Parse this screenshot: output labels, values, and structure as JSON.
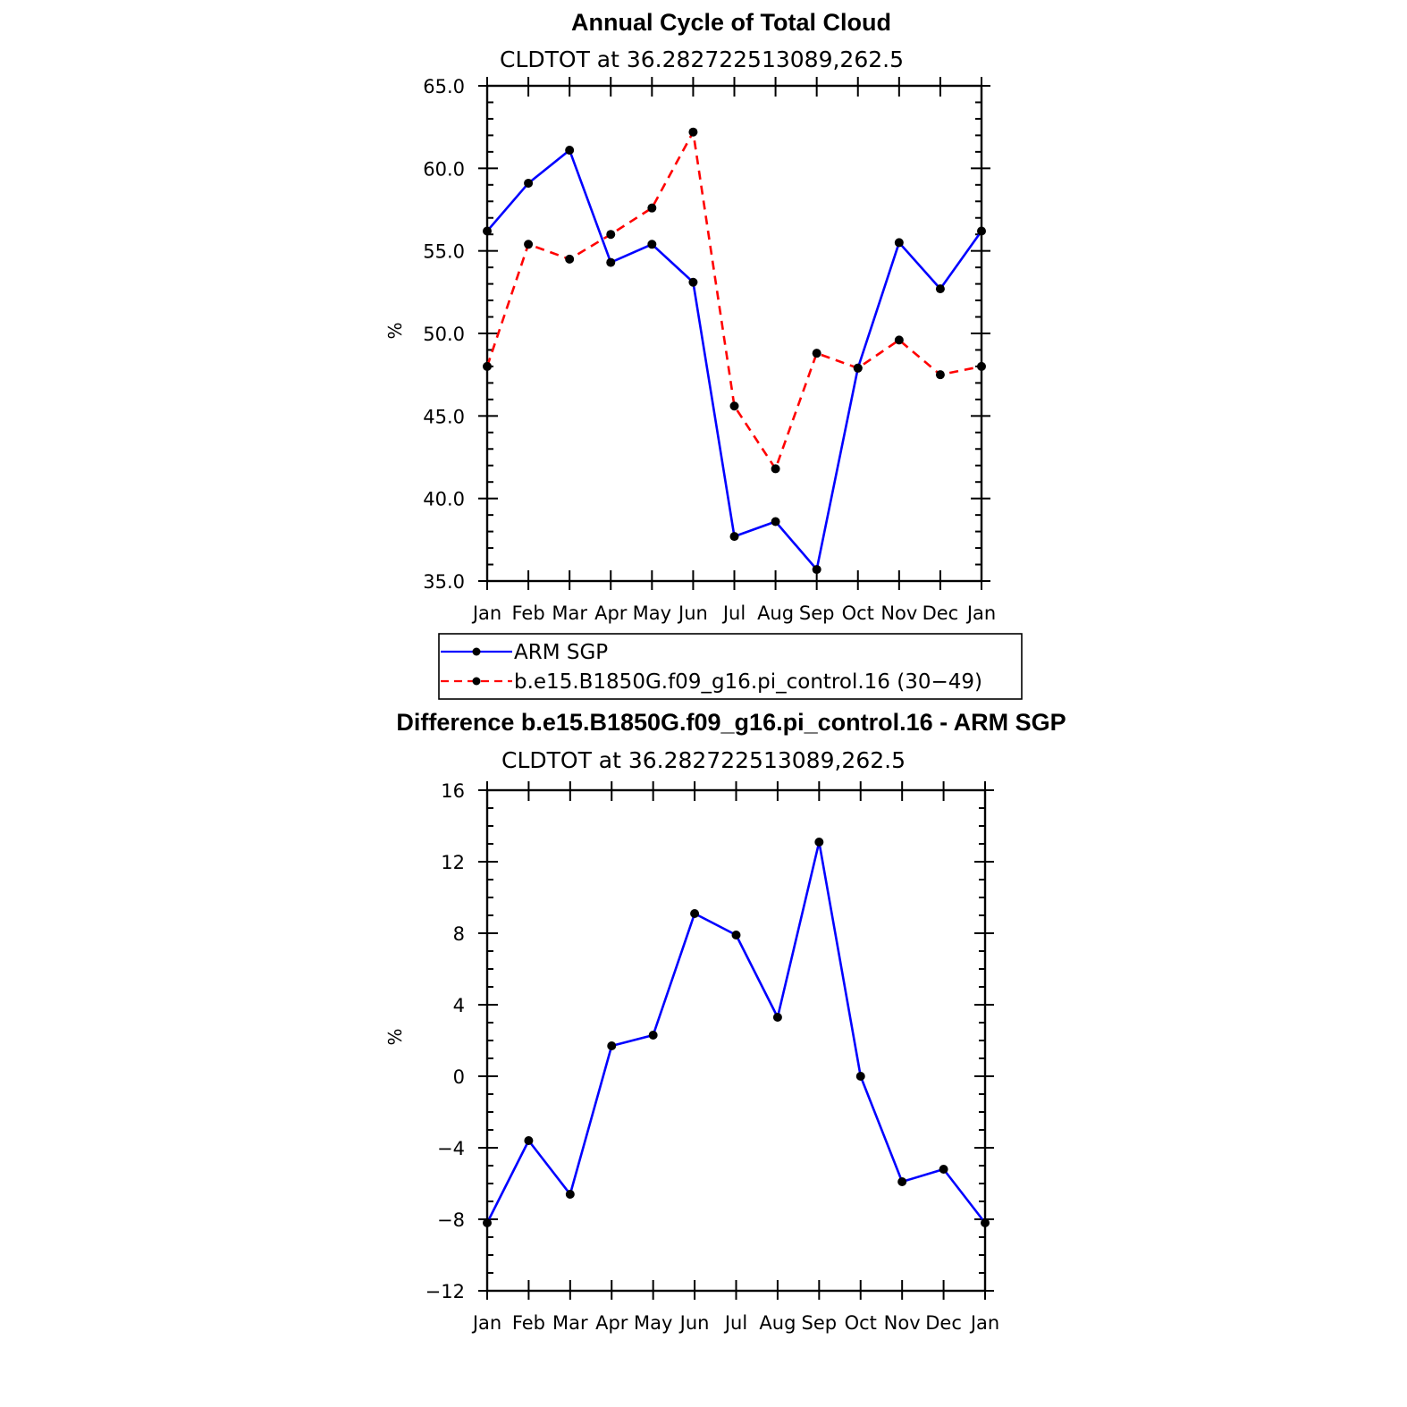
{
  "chart_data": [
    {
      "type": "line",
      "title": "Annual Cycle of Total Cloud",
      "subtitle": "CLDTOT at 36.282722513089,262.5",
      "xlabel": "",
      "ylabel": "%",
      "categories": [
        "Jan",
        "Feb",
        "Mar",
        "Apr",
        "May",
        "Jun",
        "Jul",
        "Aug",
        "Sep",
        "Oct",
        "Nov",
        "Dec",
        "Jan"
      ],
      "ylim": [
        35,
        65
      ],
      "yticks": [
        35,
        40,
        45,
        50,
        55,
        60,
        65
      ],
      "ytick_labels": [
        "35.0",
        "40.0",
        "45.0",
        "50.0",
        "55.0",
        "60.0",
        "65.0"
      ],
      "series": [
        {
          "name": "ARM SGP",
          "color": "#0000ff",
          "dash": "solid",
          "values": [
            56.2,
            59.1,
            61.1,
            54.3,
            55.4,
            53.1,
            37.7,
            38.6,
            35.7,
            47.9,
            55.5,
            52.7,
            56.2
          ]
        },
        {
          "name": "b.e15.B1850G.f09_g16.pi_control.16 (30−49)",
          "color": "#ff0000",
          "dash": "dashed",
          "values": [
            48.0,
            55.4,
            54.5,
            56.0,
            57.6,
            62.2,
            45.6,
            41.8,
            48.8,
            47.9,
            49.6,
            47.5,
            48.0
          ]
        }
      ],
      "legend": "below"
    },
    {
      "type": "line",
      "title": "Difference b.e15.B1850G.f09_g16.pi_control.16 - ARM SGP",
      "subtitle": "CLDTOT at 36.282722513089,262.5",
      "xlabel": "",
      "ylabel": "%",
      "categories": [
        "Jan",
        "Feb",
        "Mar",
        "Apr",
        "May",
        "Jun",
        "Jul",
        "Aug",
        "Sep",
        "Oct",
        "Nov",
        "Dec",
        "Jan"
      ],
      "ylim": [
        -12,
        16
      ],
      "yticks": [
        -12,
        -8,
        -4,
        0,
        4,
        8,
        12,
        16
      ],
      "ytick_labels": [
        "−12",
        "−8",
        "−4",
        "0",
        "4",
        "8",
        "12",
        "16"
      ],
      "series": [
        {
          "color": "#0000ff",
          "dash": "solid",
          "values": [
            -8.2,
            -3.6,
            -6.6,
            1.7,
            2.3,
            9.1,
            7.9,
            3.3,
            13.1,
            0.0,
            -5.9,
            -5.2,
            -8.2
          ]
        }
      ]
    }
  ]
}
